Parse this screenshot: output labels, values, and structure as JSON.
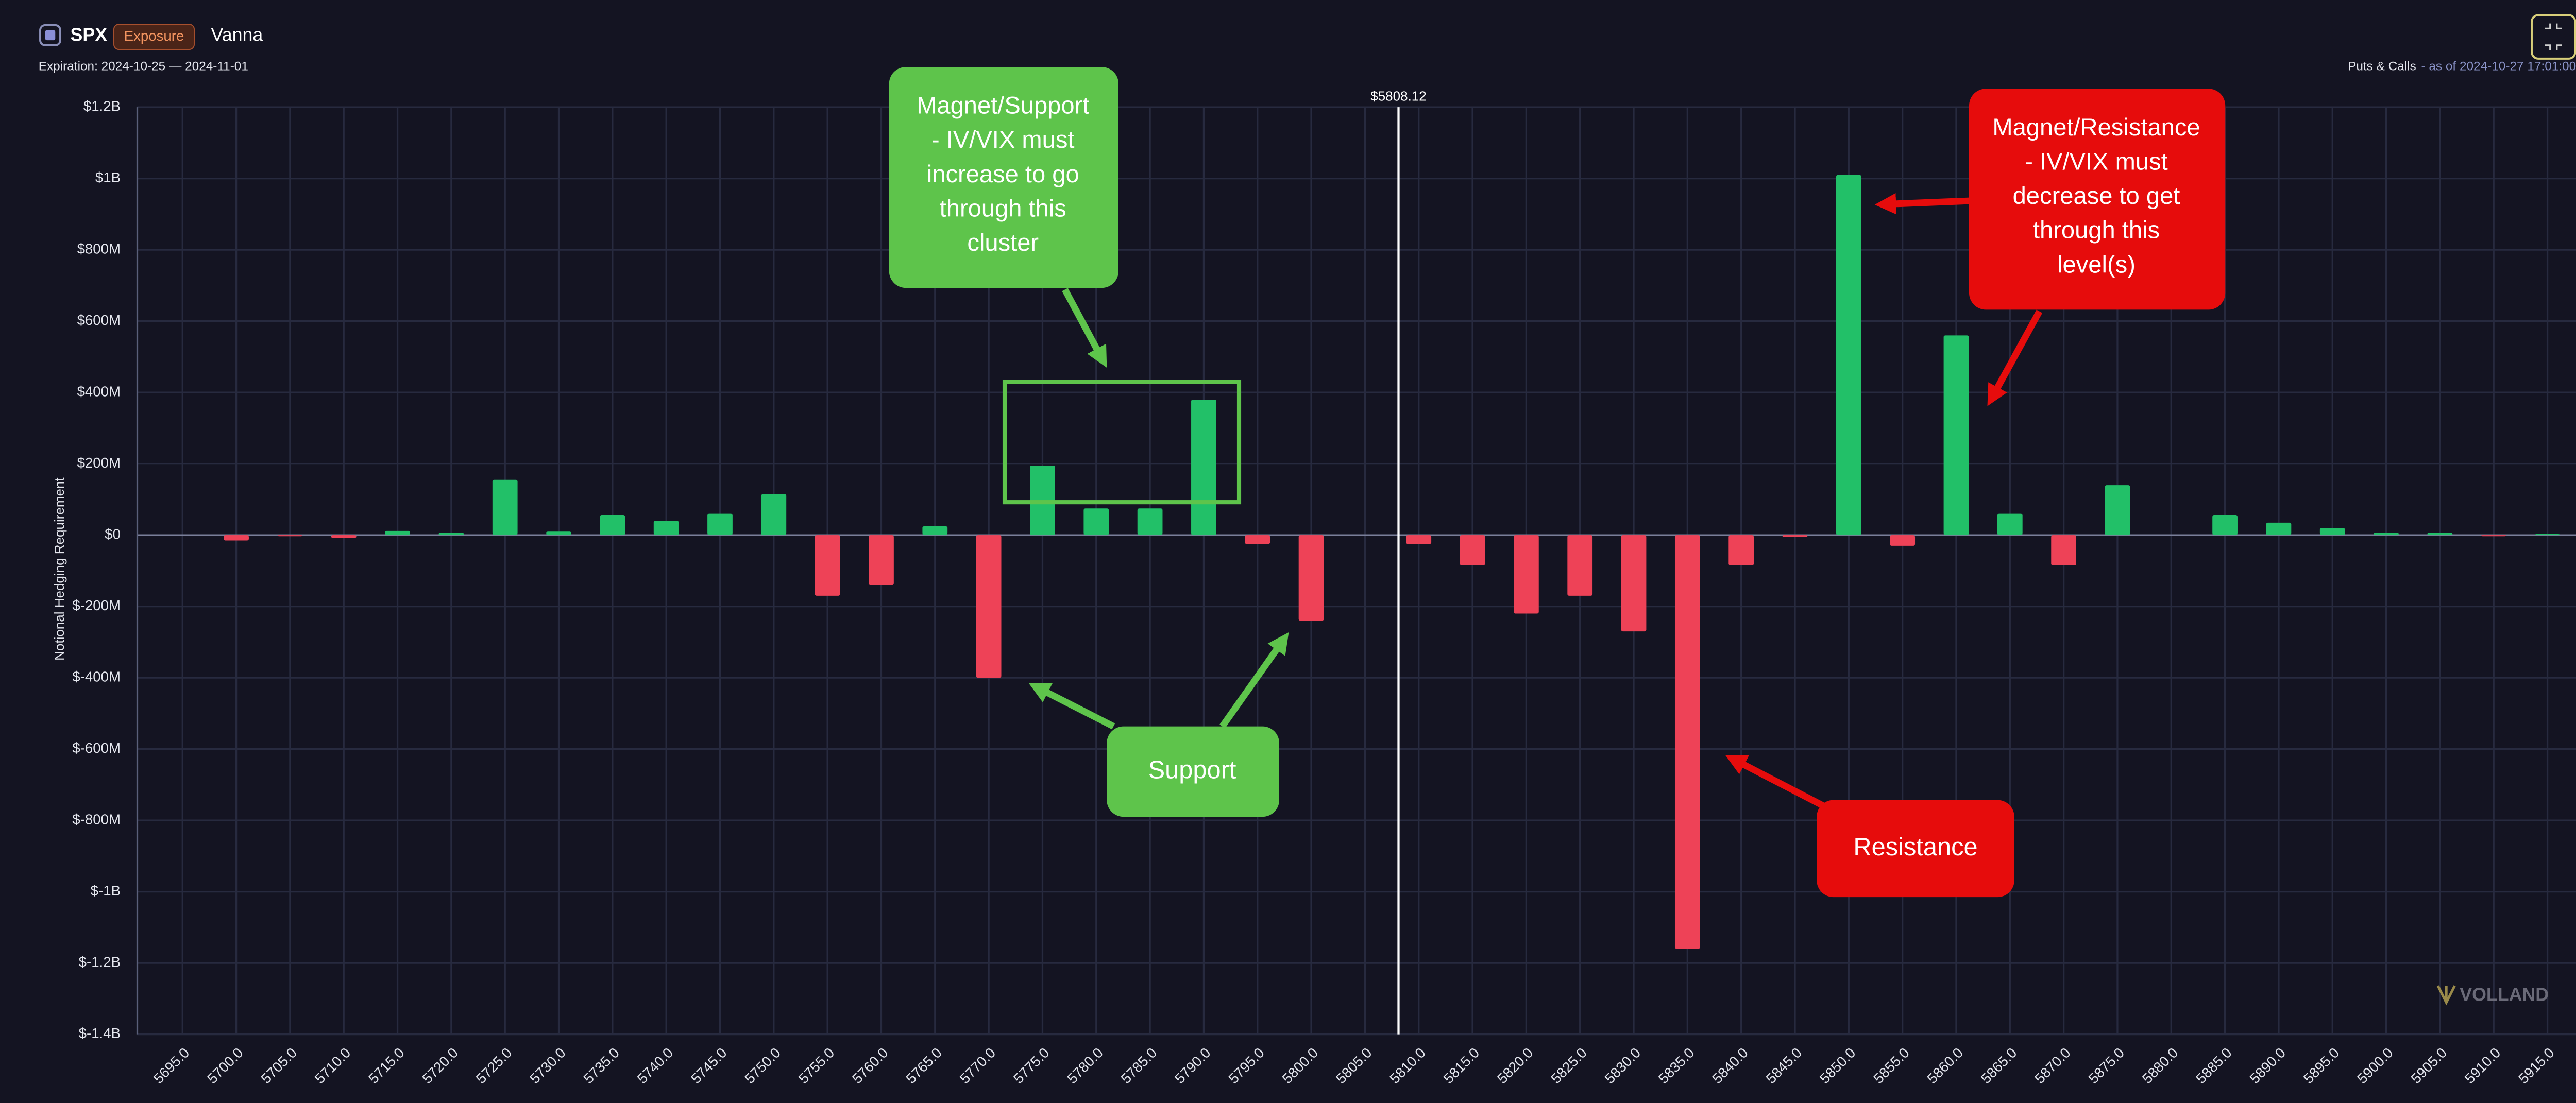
{
  "header": {
    "symbol": "SPX",
    "badge": "Exposure",
    "metric": "Vanna",
    "expiration": "Expiration: 2024-10-25 — 2024-11-01",
    "mode": "Puts & Calls",
    "as_of": "- as of 2024-10-27 17:01:00"
  },
  "watermark": "VOLLAND",
  "chart_data": {
    "type": "bar",
    "ylabel": "Notional Hedging Requirement",
    "categories": [
      "5695.0",
      "5700.0",
      "5705.0",
      "5710.0",
      "5715.0",
      "5720.0",
      "5725.0",
      "5730.0",
      "5735.0",
      "5740.0",
      "5745.0",
      "5750.0",
      "5755.0",
      "5760.0",
      "5765.0",
      "5770.0",
      "5775.0",
      "5780.0",
      "5785.0",
      "5790.0",
      "5795.0",
      "5800.0",
      "5805.0",
      "5810.0",
      "5815.0",
      "5820.0",
      "5825.0",
      "5830.0",
      "5835.0",
      "5840.0",
      "5845.0",
      "5850.0",
      "5855.0",
      "5860.0",
      "5865.0",
      "5870.0",
      "5875.0",
      "5880.0",
      "5885.0",
      "5890.0",
      "5895.0",
      "5900.0",
      "5905.0",
      "5910.0",
      "5915.0"
    ],
    "values": [
      0,
      -15000000,
      -3000000,
      -8000000,
      12000000,
      5000000,
      155000000,
      10000000,
      55000000,
      40000000,
      60000000,
      115000000,
      -170000000,
      -140000000,
      25000000,
      -400000000,
      195000000,
      75000000,
      75000000,
      380000000,
      -25000000,
      -240000000,
      0,
      -25000000,
      -85000000,
      -220000000,
      -170000000,
      -270000000,
      -1160000000,
      -85000000,
      -5000000,
      1010000000,
      -30000000,
      560000000,
      60000000,
      -85000000,
      140000000,
      0,
      55000000,
      35000000,
      20000000,
      5000000,
      5000000,
      -3000000,
      3000000
    ],
    "positive_color": "#22c068",
    "negative_color": "#ee4257",
    "ylim": [
      -1400000000,
      1200000000
    ],
    "yticks": [
      {
        "value": -1400000000,
        "label": "$-1.4B"
      },
      {
        "value": -1200000000,
        "label": "$-1.2B"
      },
      {
        "value": -1000000000,
        "label": "$-1B"
      },
      {
        "value": -800000000,
        "label": "$-800M"
      },
      {
        "value": -600000000,
        "label": "$-600M"
      },
      {
        "value": -400000000,
        "label": "$-400M"
      },
      {
        "value": -200000000,
        "label": "$-200M"
      },
      {
        "value": 0,
        "label": "$0"
      },
      {
        "value": 200000000,
        "label": "$200M"
      },
      {
        "value": 400000000,
        "label": "$400M"
      },
      {
        "value": 600000000,
        "label": "$600M"
      },
      {
        "value": 800000000,
        "label": "$800M"
      },
      {
        "value": 1000000000,
        "label": "$1B"
      },
      {
        "value": 1200000000,
        "label": "$1.2B"
      }
    ],
    "grid": true,
    "spot": {
      "value": 5808.12,
      "label": "$5808.12"
    },
    "annotations": [
      {
        "lines": [
          "Magnet/Support",
          "- IV/VIX must",
          "increase to go",
          "through this",
          "cluster"
        ],
        "color": "#5ec44b"
      },
      {
        "lines": [
          "Support"
        ],
        "color": "#5ec44b"
      },
      {
        "lines": [
          "Resistance"
        ],
        "color": "#e60c0c"
      },
      {
        "lines": [
          "Magnet/Resistance",
          "- IV/VIX must",
          "decrease to get",
          "through this",
          "level(s)"
        ],
        "color": "#e60c0c"
      }
    ]
  }
}
